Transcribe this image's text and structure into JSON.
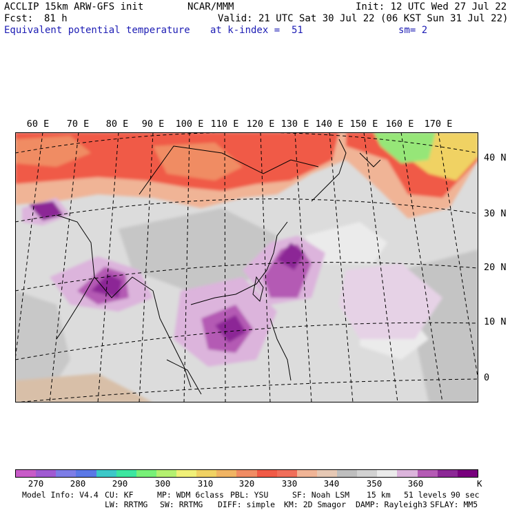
{
  "header": {
    "model": "ACCLIP 15km ARW-GFS init",
    "org": "NCAR/MMM",
    "init": "Init: 12 UTC Wed 27 Jul 22",
    "fcst_label": "Fcst:",
    "fcst_value": "81 h",
    "valid": "Valid: 21 UTC Sat 30 Jul 22 (06 KST Sun 31 Jul 22)",
    "field": "Equivalent potential temperature",
    "level": "at k-index =  51",
    "smooth": "sm= 2"
  },
  "lon_labels": [
    "60 E",
    "70 E",
    "80 E",
    "90 E",
    "100 E",
    "110 E",
    "120 E",
    "130 E",
    "140 E",
    "150 E",
    "160 E",
    "170 E"
  ],
  "lat_labels": [
    "40 N",
    "30 N",
    "20 N",
    "10 N",
    "0"
  ],
  "colorbar": {
    "colors": [
      "#c85ac8",
      "#a05ad2",
      "#7d7de6",
      "#5a78e6",
      "#3cc8c8",
      "#3ce6a0",
      "#78f078",
      "#b4f070",
      "#f0f078",
      "#f0d264",
      "#f0b464",
      "#f08c64",
      "#f05a46",
      "#f06e5a",
      "#f0b496",
      "#e6c8b4",
      "#bebebe",
      "#d2d2d2",
      "#ebebeb",
      "#dcb4dc",
      "#b45ab4",
      "#8c2896",
      "#78007d"
    ],
    "ticks": [
      "270",
      "280",
      "290",
      "300",
      "310",
      "320",
      "330",
      "340",
      "350",
      "360"
    ],
    "unit": "K"
  },
  "footer": {
    "line1": [
      "Model Info: V4.4",
      "CU: KF",
      "MP: WDM 6class",
      "PBL: YSU",
      "SF: Noah LSM",
      "15 km",
      "51 levels",
      "90 sec"
    ],
    "line2": [
      "LW: RRTMG",
      "SW: RRTMG",
      "DIFF: simple",
      "KM: 2D Smagor",
      "DAMP: Rayleigh3",
      "SFLAY: MM5"
    ]
  }
}
